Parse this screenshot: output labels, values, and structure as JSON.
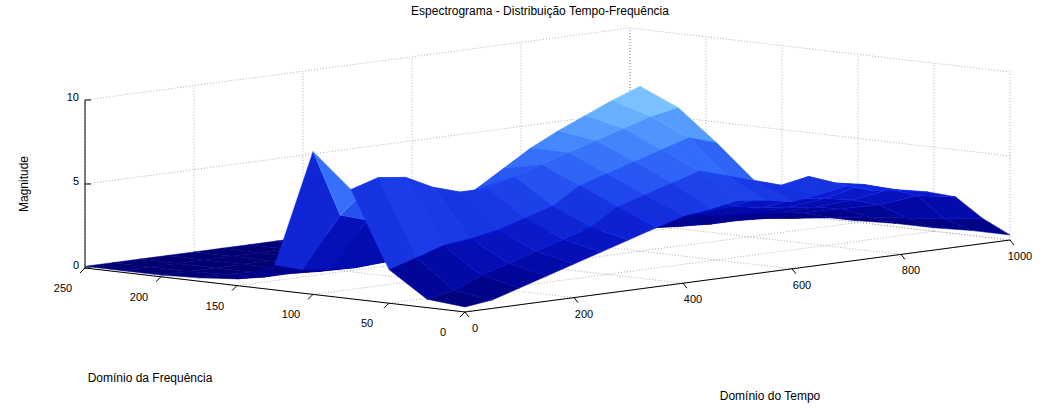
{
  "chart_data": {
    "type": "surface",
    "title": "Espectrograma - Distribuição Tempo-Frequência",
    "x_label": "Domínio do Tempo",
    "y_label": "Domínio da Frequência",
    "z_label": "Magnitude",
    "x": [
      0,
      50,
      100,
      150,
      200,
      250,
      300,
      350,
      400,
      450,
      500,
      550,
      600,
      650,
      700,
      750,
      800,
      850,
      900,
      950,
      1000
    ],
    "y": [
      0,
      25,
      50,
      75,
      100,
      125,
      150,
      175,
      200,
      225,
      250
    ],
    "z": [
      [
        0.3,
        0.5,
        1.0,
        1.5,
        2.0,
        2.5,
        3.0,
        3.5,
        4.0,
        4.2,
        4.5,
        4.3,
        4.0,
        4.2,
        4.5,
        4.0,
        3.8,
        3.5,
        3.0,
        1.5,
        0.3
      ],
      [
        0.5,
        0.8,
        1.5,
        2.0,
        2.5,
        3.0,
        3.5,
        4.5,
        5.0,
        5.5,
        6.0,
        5.5,
        5.0,
        4.5,
        4.8,
        4.2,
        3.9,
        3.4,
        2.8,
        1.2,
        0.3
      ],
      [
        2.0,
        2.5,
        3.0,
        3.2,
        3.5,
        4.0,
        4.5,
        5.5,
        6.0,
        6.5,
        7.0,
        7.5,
        7.0,
        4.0,
        3.5,
        3.0,
        2.8,
        2.5,
        2.0,
        1.0,
        0.2
      ],
      [
        6.5,
        7.0,
        6.8,
        6.0,
        5.5,
        5.5,
        6.0,
        6.5,
        7.0,
        7.5,
        8.0,
        8.5,
        8.8,
        3.5,
        2.5,
        2.2,
        2.0,
        1.8,
        1.5,
        0.8,
        0.2
      ],
      [
        8.5,
        4.5,
        4.0,
        3.5,
        3.8,
        4.0,
        5.0,
        6.0,
        7.0,
        7.8,
        8.5,
        9.2,
        9.8,
        3.0,
        1.8,
        1.5,
        1.4,
        1.2,
        1.0,
        0.5,
        0.1
      ],
      [
        1.5,
        1.0,
        0.8,
        0.7,
        0.8,
        1.0,
        1.5,
        2.0,
        2.5,
        3.0,
        3.5,
        4.0,
        4.5,
        1.5,
        0.8,
        0.6,
        0.5,
        0.5,
        0.4,
        0.2,
        0.1
      ],
      [
        0.4,
        0.3,
        0.3,
        0.2,
        0.3,
        0.3,
        0.4,
        0.5,
        0.6,
        0.7,
        0.8,
        0.9,
        1.0,
        0.5,
        0.3,
        0.2,
        0.2,
        0.2,
        0.2,
        0.1,
        0.1
      ],
      [
        0.2,
        0.2,
        0.1,
        0.1,
        0.1,
        0.1,
        0.2,
        0.2,
        0.2,
        0.3,
        0.3,
        0.3,
        0.4,
        0.2,
        0.1,
        0.1,
        0.1,
        0.1,
        0.1,
        0.1,
        0.1
      ],
      [
        0.1,
        0.1,
        0.1,
        0.1,
        0.1,
        0.1,
        0.1,
        0.1,
        0.1,
        0.1,
        0.1,
        0.1,
        0.1,
        0.1,
        0.1,
        0.1,
        0.1,
        0.1,
        0.1,
        0.1,
        0.1
      ],
      [
        0.1,
        0.1,
        0.1,
        0.1,
        0.1,
        0.1,
        0.1,
        0.1,
        0.1,
        0.1,
        0.1,
        0.1,
        0.1,
        0.1,
        0.1,
        0.1,
        0.1,
        0.1,
        0.1,
        0.1,
        0.1
      ],
      [
        0.1,
        0.1,
        0.1,
        0.1,
        0.1,
        0.1,
        0.1,
        0.1,
        0.1,
        0.1,
        0.1,
        0.1,
        0.1,
        0.1,
        0.1,
        0.1,
        0.1,
        0.1,
        0.1,
        0.1,
        0.1
      ]
    ],
    "xlim": [
      0,
      1000
    ],
    "xticks": [
      0,
      200,
      400,
      600,
      800,
      1000
    ],
    "ylim": [
      0,
      250
    ],
    "yticks": [
      0,
      50,
      100,
      150,
      200,
      250
    ],
    "zlim": [
      0,
      10
    ],
    "zticks": [
      0,
      5,
      10
    ],
    "grid": true
  }
}
